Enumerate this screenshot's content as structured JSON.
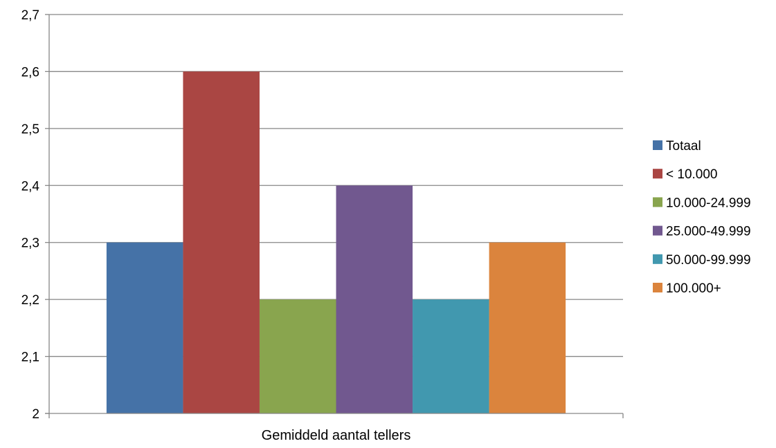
{
  "chart_data": {
    "type": "bar",
    "categories": [
      "Gemiddeld aantal tellers"
    ],
    "series": [
      {
        "name": "Totaal",
        "values": [
          2.3
        ],
        "color": "#4572A7"
      },
      {
        "name": "< 10.000",
        "values": [
          2.6
        ],
        "color": "#AA4643"
      },
      {
        "name": "10.000-24.999",
        "values": [
          2.2
        ],
        "color": "#89A54E"
      },
      {
        "name": "25.000-49.999",
        "values": [
          2.4
        ],
        "color": "#71588F"
      },
      {
        "name": "50.000-99.999",
        "values": [
          2.2
        ],
        "color": "#4198AF"
      },
      {
        "name": "100.000+",
        "values": [
          2.3
        ],
        "color": "#DB843D"
      }
    ],
    "yticks": [
      "2",
      "2,1",
      "2,2",
      "2,3",
      "2,4",
      "2,5",
      "2,6",
      "2,7"
    ],
    "ylim": [
      2,
      2.7
    ],
    "grid": true,
    "legend": "right",
    "gridline_color": "#868686"
  }
}
